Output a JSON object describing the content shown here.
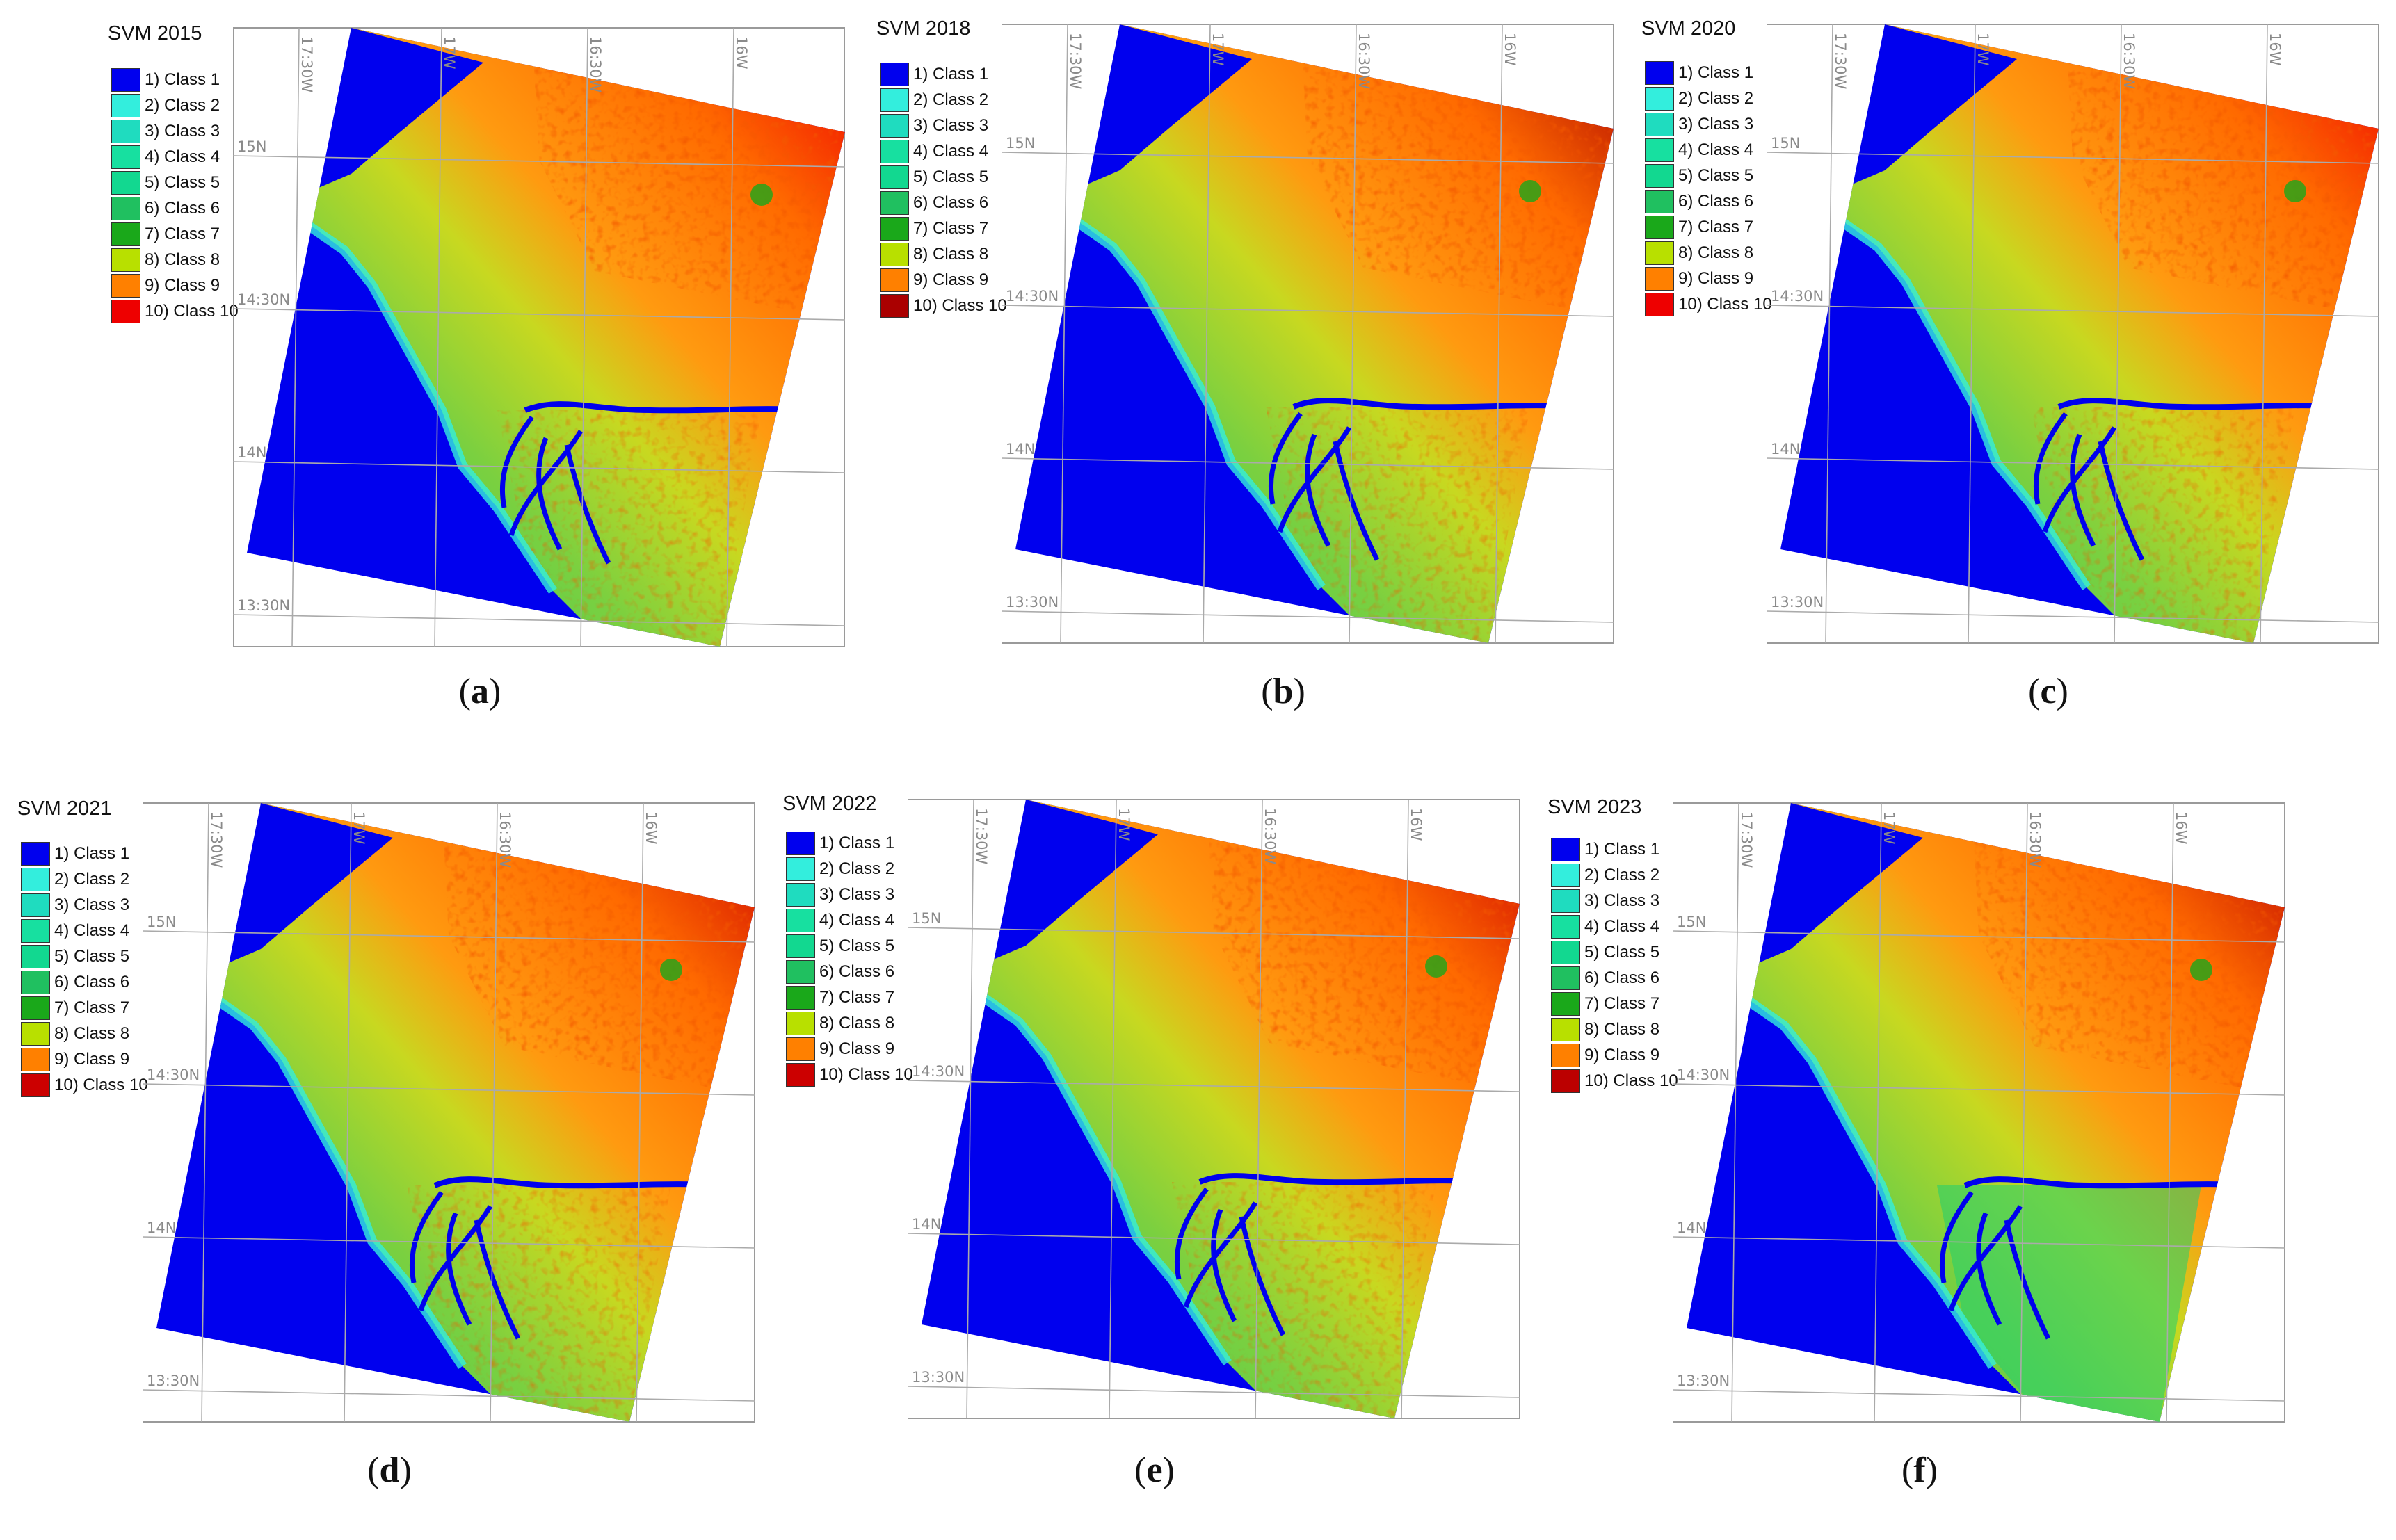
{
  "classes": [
    {
      "label": "1) Class 1",
      "color": "#0000ee"
    },
    {
      "label": "2) Class 2",
      "color": "#33eedd"
    },
    {
      "label": "3) Class 3",
      "color": "#1fdcbf"
    },
    {
      "label": "4) Class 4",
      "color": "#17e0a0"
    },
    {
      "label": "5) Class 5",
      "color": "#12d890"
    },
    {
      "label": "6) Class 6",
      "color": "#20c060"
    },
    {
      "label": "7) Class 7",
      "color": "#1aa81a"
    },
    {
      "label": "8) Class 8",
      "color": "#b8e000"
    },
    {
      "label": "9) Class 9",
      "color": "#ff8000"
    },
    {
      "label": "10) Class 10",
      "color": "#ee0000"
    }
  ],
  "grid_labels": {
    "lat": [
      "15N",
      "14:30N",
      "14N",
      "13:30N"
    ],
    "lon": [
      "17:30W",
      "17W",
      "16:30W",
      "16W"
    ]
  },
  "panels": [
    {
      "id": "a",
      "title": "SVM 2015",
      "label": "a",
      "class10_color": "#ee0000"
    },
    {
      "id": "b",
      "title": "SVM 2018",
      "label": "b",
      "class10_color": "#aa0000"
    },
    {
      "id": "c",
      "title": "SVM 2020",
      "label": "c",
      "class10_color": "#ee0000"
    },
    {
      "id": "d",
      "title": "SVM 2021",
      "label": "d",
      "class10_color": "#cc0000"
    },
    {
      "id": "e",
      "title": "SVM 2022",
      "label": "e",
      "class10_color": "#cc0000"
    },
    {
      "id": "f",
      "title": "SVM 2023",
      "label": "f",
      "class10_color": "#bb0000"
    }
  ]
}
